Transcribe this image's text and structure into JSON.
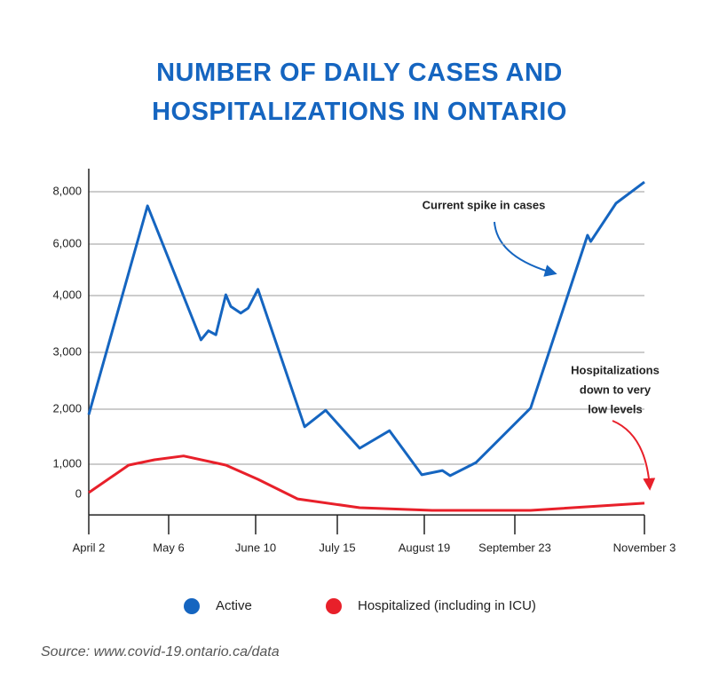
{
  "chart_data": {
    "type": "line",
    "title": "NUMBER OF DAILY CASES AND HOSPITALIZATIONS IN ONTARIO",
    "xlim": [
      0,
      215
    ],
    "xticks": [
      {
        "value": 0,
        "label": "April 2"
      },
      {
        "value": 34,
        "label": "May 6"
      },
      {
        "value": 69,
        "label": "June 10"
      },
      {
        "value": 104,
        "label": "July 15"
      },
      {
        "value": 139,
        "label": "August 19"
      },
      {
        "value": 174,
        "label": "September 23"
      },
      {
        "value": 215,
        "label": "November 3"
      }
    ],
    "ylim": [
      -680,
      8880
    ],
    "yticks": [
      0,
      {
        "value": 1000,
        "label": "1,000"
      },
      {
        "value": 2000,
        "label": "2,000"
      },
      {
        "value": 3000,
        "label": "3,000"
      },
      {
        "value": 4000,
        "label": "4,000"
      },
      {
        "value": 6000,
        "label": "6,000"
      },
      {
        "value": 8000,
        "label": "8,000"
      }
    ],
    "grid": true,
    "series": [
      {
        "name": "Active",
        "color": "#1565c0",
        "x": [
          0,
          25,
          47,
          50,
          53,
          57,
          59,
          63,
          66,
          70,
          90,
          99,
          113,
          125,
          138,
          146,
          149,
          159,
          179,
          197,
          198,
          206,
          215
        ],
        "values": [
          1900,
          7460,
          3220,
          3380,
          3310,
          4030,
          3810,
          3690,
          3780,
          4240,
          1680,
          1980,
          1290,
          1610,
          650,
          790,
          620,
          1030,
          2020,
          6340,
          6100,
          7560,
          8370
        ]
      },
      {
        "name": "Hospitalized (including in ICU)",
        "color": "#e8202a",
        "x": [
          0,
          17,
          28,
          40,
          57,
          70,
          87,
          113,
          142,
          179,
          215
        ],
        "values": [
          60,
          970,
          1080,
          1150,
          970,
          500,
          -150,
          -440,
          -530,
          -530,
          -290
        ]
      }
    ],
    "annotations": [
      {
        "text": "Current spike in cases"
      },
      {
        "lines": [
          "Hospitalizations",
          "down to very",
          "low levels"
        ]
      }
    ],
    "source": "Source: www.covid-19.ontario.ca/data"
  }
}
